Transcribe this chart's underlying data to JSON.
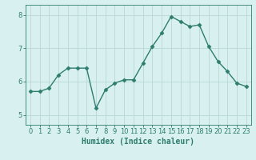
{
  "x": [
    0,
    1,
    2,
    3,
    4,
    5,
    6,
    7,
    8,
    9,
    10,
    11,
    12,
    13,
    14,
    15,
    16,
    17,
    18,
    19,
    20,
    21,
    22,
    23
  ],
  "y": [
    5.7,
    5.7,
    5.8,
    6.2,
    6.4,
    6.4,
    6.4,
    5.2,
    5.75,
    5.95,
    6.05,
    6.05,
    6.55,
    7.05,
    7.45,
    7.95,
    7.8,
    7.65,
    7.7,
    7.05,
    6.6,
    6.3,
    5.95,
    5.85
  ],
  "line_color": "#2e7d6e",
  "marker": "D",
  "marker_size": 2.5,
  "bg_color": "#d8f0f0",
  "grid_color": "#b8d8d8",
  "xlabel": "Humidex (Indice chaleur)",
  "ylim": [
    4.7,
    8.3
  ],
  "xlim": [
    -0.5,
    23.5
  ],
  "yticks": [
    5,
    6,
    7,
    8
  ],
  "xticks": [
    0,
    1,
    2,
    3,
    4,
    5,
    6,
    7,
    8,
    9,
    10,
    11,
    12,
    13,
    14,
    15,
    16,
    17,
    18,
    19,
    20,
    21,
    22,
    23
  ],
  "tick_color": "#2e7d6e",
  "label_fontsize": 7,
  "tick_fontsize": 6,
  "linewidth": 1.0
}
